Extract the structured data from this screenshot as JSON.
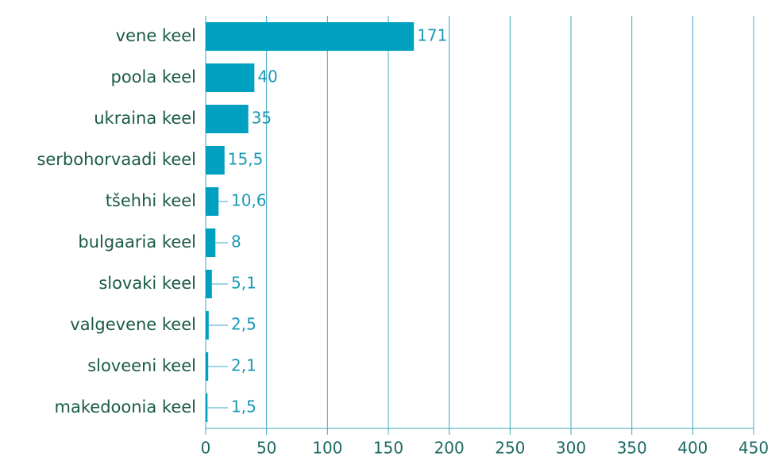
{
  "chart_data": {
    "type": "hbar",
    "categories": [
      "vene keel",
      "poola keel",
      "ukraina keel",
      "serbohorvaadi keel",
      "tšehhi keel",
      "bulgaaria keel",
      "slovaki keel",
      "valgevene keel",
      "sloveeni keel",
      "makedoonia keel"
    ],
    "values": [
      171,
      40,
      35,
      15.5,
      10.6,
      8,
      5.1,
      2.5,
      2.1,
      1.5
    ],
    "value_labels": [
      "171",
      "40",
      "35",
      "15,5",
      "10,6",
      "8",
      "5,1",
      "2,5",
      "2,1",
      "1,5"
    ],
    "color": "#00a0c0",
    "xlim": [
      0,
      450
    ],
    "xticks": [
      0,
      50,
      100,
      150,
      200,
      250,
      300,
      350,
      400,
      450
    ],
    "grid": true
  }
}
